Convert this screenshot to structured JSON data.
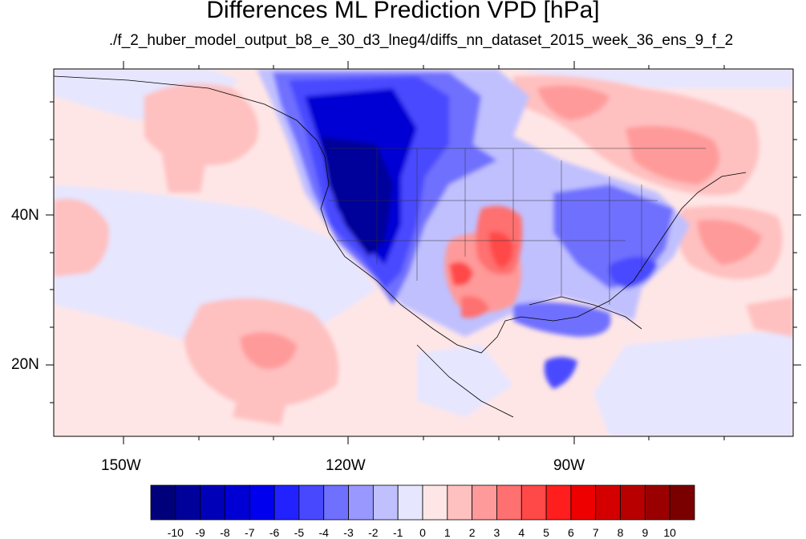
{
  "title": "Differences ML Prediction VPD [hPa]",
  "subtitle": "./f_2_huber_model_output_b8_e_30_d3_lneg4/diffs_nn_dataset_2015_week_36_ens_9_f_2",
  "lat_labels": [
    "40N",
    "20N"
  ],
  "lon_labels": [
    "150W",
    "120W",
    "90W"
  ],
  "colorbar": {
    "labels": [
      "-10",
      "-9",
      "-8",
      "-7",
      "-6",
      "-5",
      "-4",
      "-3",
      "-2",
      "-1",
      "0",
      "1",
      "2",
      "3",
      "4",
      "5",
      "6",
      "7",
      "8",
      "9",
      "10"
    ],
    "colors": [
      "#00007a",
      "#00009a",
      "#0000b8",
      "#0000d4",
      "#0000ee",
      "#2222ff",
      "#4848ff",
      "#7070ff",
      "#9898ff",
      "#c0c0ff",
      "#e6e6ff",
      "#ffe6e6",
      "#ffc0c0",
      "#ff9a9a",
      "#ff7070",
      "#ff4848",
      "#ff1e1e",
      "#ee0000",
      "#d40000",
      "#b80000",
      "#9a0000",
      "#7a0000"
    ]
  },
  "colors": {
    "background_field": "#ffe6e6",
    "ocean_light_red": "#ffc0c0",
    "ocean_light_blue": "#e6e6ff",
    "west_dark_blue": "#00009a",
    "texas_red": "#ff4848"
  }
}
